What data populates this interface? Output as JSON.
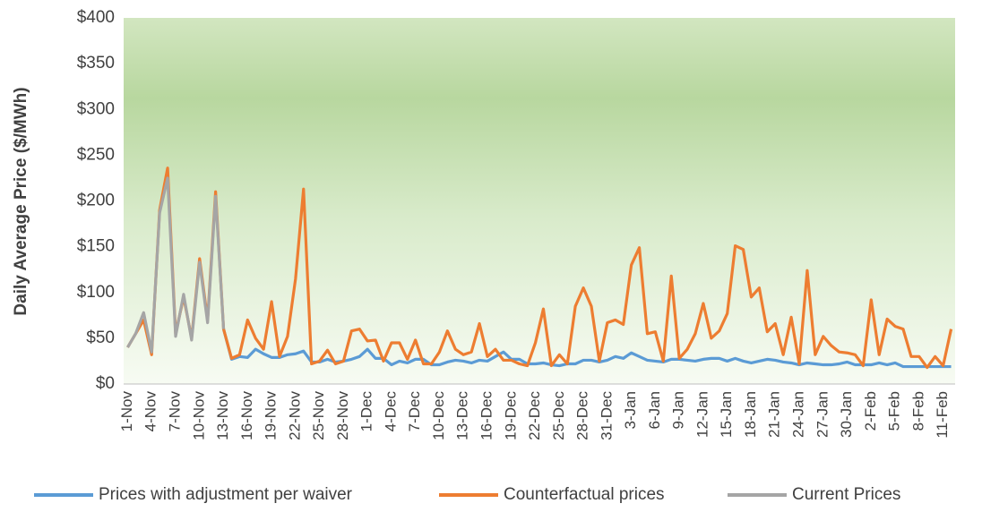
{
  "chart_data": {
    "type": "line",
    "y_label": "Daily Average Price ($/MWh)",
    "categories": [
      "1-Nov",
      null,
      null,
      "4-Nov",
      null,
      null,
      "7-Nov",
      null,
      null,
      "10-Nov",
      null,
      null,
      "13-Nov",
      null,
      null,
      "16-Nov",
      null,
      null,
      "19-Nov",
      null,
      null,
      "22-Nov",
      null,
      null,
      "25-Nov",
      null,
      null,
      "28-Nov",
      null,
      null,
      "1-Dec",
      null,
      null,
      "4-Dec",
      null,
      null,
      "7-Dec",
      null,
      null,
      "10-Dec",
      null,
      null,
      "13-Dec",
      null,
      null,
      "16-Dec",
      null,
      null,
      "19-Dec",
      null,
      null,
      "22-Dec",
      null,
      null,
      "25-Dec",
      null,
      null,
      "28-Dec",
      null,
      null,
      "31-Dec",
      null,
      null,
      "3-Jan",
      null,
      null,
      "6-Jan",
      null,
      null,
      "9-Jan",
      null,
      null,
      "12-Jan",
      null,
      null,
      "15-Jan",
      null,
      null,
      "18-Jan",
      null,
      null,
      "21-Jan",
      null,
      null,
      "24-Jan",
      null,
      null,
      "27-Jan",
      null,
      null,
      "30-Jan",
      null,
      null,
      "2-Feb",
      null,
      null,
      "5-Feb",
      null,
      null,
      "8-Feb",
      null,
      null,
      "11-Feb",
      null
    ],
    "series": [
      {
        "name": "Prices with adjustment per waiver",
        "color": "#5b9bd5",
        "values": [
          null,
          null,
          null,
          null,
          null,
          null,
          null,
          null,
          null,
          null,
          null,
          null,
          60,
          27,
          30,
          29,
          38,
          33,
          29,
          29,
          32,
          33,
          36,
          24,
          24,
          27,
          24,
          25,
          27,
          30,
          38,
          28,
          28,
          21,
          25,
          23,
          27,
          27,
          21,
          21,
          24,
          26,
          25,
          23,
          26,
          25,
          30,
          35,
          27,
          27,
          22,
          22,
          23,
          21,
          20,
          22,
          22,
          26,
          26,
          24,
          26,
          30,
          28,
          34,
          30,
          26,
          25,
          24,
          27,
          27,
          26,
          25,
          27,
          28,
          28,
          25,
          28,
          25,
          23,
          25,
          27,
          26,
          24,
          23,
          21,
          23,
          22,
          21,
          21,
          22,
          24,
          21,
          21,
          21,
          23,
          21,
          23,
          19,
          19,
          19,
          19,
          19,
          19,
          19
        ]
      },
      {
        "name": "Counterfactual prices",
        "color": "#ed7d31",
        "values": [
          40,
          55,
          70,
          32,
          190,
          236,
          55,
          95,
          50,
          137,
          70,
          210,
          60,
          28,
          32,
          70,
          50,
          38,
          90,
          30,
          52,
          115,
          213,
          22,
          25,
          37,
          22,
          25,
          58,
          60,
          47,
          48,
          25,
          45,
          45,
          27,
          48,
          22,
          22,
          35,
          58,
          38,
          32,
          35,
          66,
          30,
          38,
          26,
          26,
          22,
          20,
          45,
          82,
          20,
          32,
          22,
          85,
          105,
          85,
          25,
          67,
          70,
          65,
          130,
          149,
          55,
          57,
          25,
          118,
          28,
          38,
          55,
          88,
          50,
          58,
          77,
          151,
          147,
          95,
          105,
          57,
          66,
          32,
          73,
          22,
          124,
          32,
          52,
          42,
          35,
          34,
          32,
          20,
          92,
          32,
          71,
          63,
          60,
          30,
          30,
          18,
          30,
          20,
          60
        ]
      },
      {
        "name": "Current Prices",
        "color": "#a5a5a5",
        "values": [
          40,
          55,
          78,
          35,
          187,
          225,
          52,
          98,
          48,
          133,
          67,
          205,
          60,
          null,
          null,
          null,
          null,
          null,
          null,
          null,
          null,
          null,
          null,
          null,
          null,
          null,
          null,
          null,
          null,
          null,
          null,
          null,
          null,
          null,
          null,
          null,
          null,
          null,
          null,
          null,
          null,
          null,
          null,
          null,
          null,
          null,
          null,
          null,
          null,
          null,
          null,
          null,
          null,
          null,
          null,
          null,
          null,
          null,
          null,
          null,
          null,
          null,
          null,
          null,
          null,
          null,
          null,
          null,
          null,
          null,
          null,
          null,
          null,
          null,
          null,
          null,
          null,
          null,
          null,
          null,
          null,
          null,
          null,
          null,
          null,
          null,
          null,
          null,
          null,
          null,
          null,
          null,
          null,
          null,
          null,
          null,
          null,
          null,
          null,
          null,
          null,
          null,
          null,
          null
        ]
      }
    ],
    "ylim": [
      0,
      400
    ],
    "yticks": [
      {
        "value": 0,
        "label": "$0"
      },
      {
        "value": 50,
        "label": "$50"
      },
      {
        "value": 100,
        "label": "$100"
      },
      {
        "value": 150,
        "label": "$150"
      },
      {
        "value": 200,
        "label": "$200"
      },
      {
        "value": 250,
        "label": "$250"
      },
      {
        "value": 300,
        "label": "$300"
      },
      {
        "value": 350,
        "label": "$350"
      },
      {
        "value": 400,
        "label": "$400"
      }
    ],
    "grid": false,
    "legend": "bottom"
  }
}
